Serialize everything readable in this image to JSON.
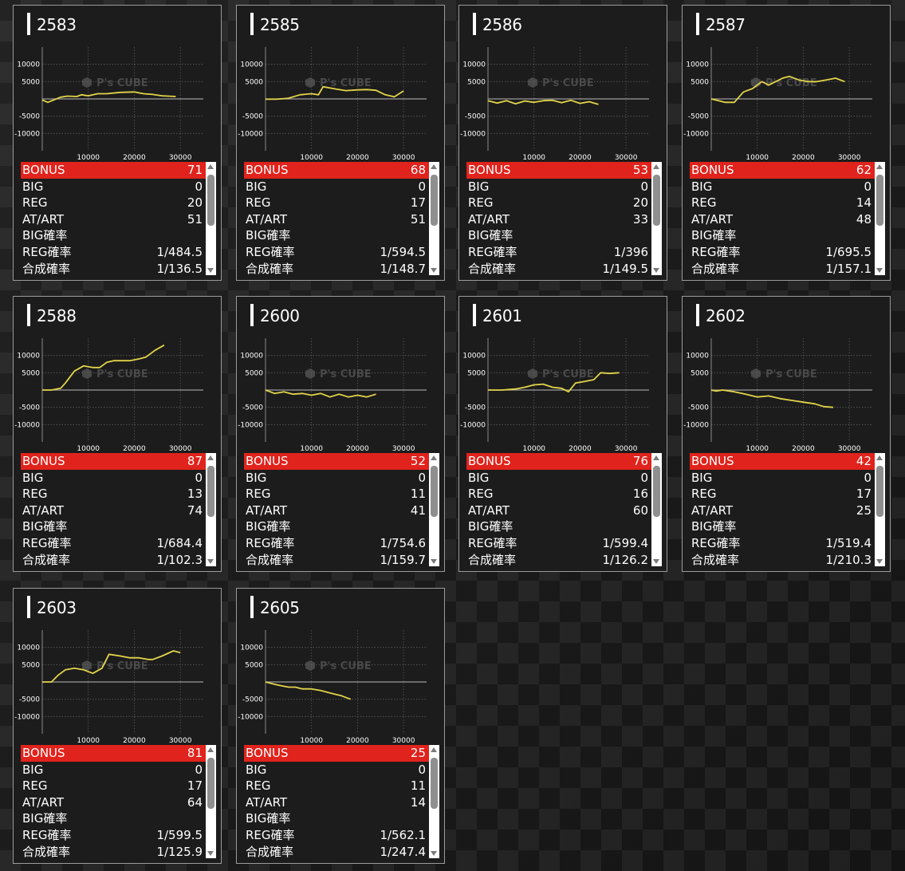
{
  "logo": {
    "text": "P's CUBE"
  },
  "labels": {
    "bonus": "BONUS",
    "big": "BIG",
    "reg": "REG",
    "at_art": "AT/ART",
    "big_rate": "BIG確率",
    "reg_rate": "REG確率",
    "total_rate": "合成確率"
  },
  "chart_axes": {
    "y_ticks": [
      "10000",
      "5000",
      "-5000",
      "-10000"
    ],
    "x_ticks": [
      "10000",
      "20000",
      "30000"
    ]
  },
  "colors": {
    "line": "#e2d44b",
    "bonus_bar": "#e0231c",
    "card_bg": "#1c1c1c"
  },
  "machines": [
    {
      "id": "2583",
      "bonus": "71",
      "big": "0",
      "reg": "20",
      "at_art": "51",
      "big_rate": "",
      "reg_rate": "1/484.5",
      "total_rate": "1/136.5"
    },
    {
      "id": "2585",
      "bonus": "68",
      "big": "0",
      "reg": "17",
      "at_art": "51",
      "big_rate": "",
      "reg_rate": "1/594.5",
      "total_rate": "1/148.7"
    },
    {
      "id": "2586",
      "bonus": "53",
      "big": "0",
      "reg": "20",
      "at_art": "33",
      "big_rate": "",
      "reg_rate": "1/396",
      "total_rate": "1/149.5"
    },
    {
      "id": "2587",
      "bonus": "62",
      "big": "0",
      "reg": "14",
      "at_art": "48",
      "big_rate": "",
      "reg_rate": "1/695.5",
      "total_rate": "1/157.1"
    },
    {
      "id": "2588",
      "bonus": "87",
      "big": "0",
      "reg": "13",
      "at_art": "74",
      "big_rate": "",
      "reg_rate": "1/684.4",
      "total_rate": "1/102.3"
    },
    {
      "id": "2600",
      "bonus": "52",
      "big": "0",
      "reg": "11",
      "at_art": "41",
      "big_rate": "",
      "reg_rate": "1/754.6",
      "total_rate": "1/159.7"
    },
    {
      "id": "2601",
      "bonus": "76",
      "big": "0",
      "reg": "16",
      "at_art": "60",
      "big_rate": "",
      "reg_rate": "1/599.4",
      "total_rate": "1/126.2"
    },
    {
      "id": "2602",
      "bonus": "42",
      "big": "0",
      "reg": "17",
      "at_art": "25",
      "big_rate": "",
      "reg_rate": "1/519.4",
      "total_rate": "1/210.3"
    },
    {
      "id": "2603",
      "bonus": "81",
      "big": "0",
      "reg": "17",
      "at_art": "64",
      "big_rate": "",
      "reg_rate": "1/599.5",
      "total_rate": "1/125.9"
    },
    {
      "id": "2605",
      "bonus": "25",
      "big": "0",
      "reg": "11",
      "at_art": "14",
      "big_rate": "",
      "reg_rate": "1/562.1",
      "total_rate": "1/247.4"
    }
  ],
  "chart_data": [
    {
      "type": "line",
      "xlim": [
        0,
        35000
      ],
      "ylim": [
        -15000,
        15000
      ],
      "grid": true,
      "series": [
        {
          "x": [
            0,
            1200,
            2500,
            4000,
            5500,
            7500,
            8500,
            10000,
            12000,
            14000,
            17000,
            20000,
            22000,
            24000,
            26000,
            29000
          ],
          "values": [
            -300,
            -1000,
            -300,
            500,
            800,
            700,
            1200,
            900,
            1500,
            1500,
            1900,
            2000,
            1500,
            1300,
            900,
            700
          ]
        }
      ]
    },
    {
      "type": "line",
      "xlim": [
        0,
        35000
      ],
      "ylim": [
        -15000,
        15000
      ],
      "grid": true,
      "series": [
        {
          "x": [
            0,
            2500,
            5000,
            7500,
            10000,
            11500,
            12500,
            13500,
            15500,
            17500,
            20000,
            22000,
            24000,
            26000,
            28000,
            30000
          ],
          "values": [
            -100,
            -100,
            200,
            1200,
            1500,
            1200,
            3500,
            3300,
            2800,
            2400,
            2600,
            2700,
            2500,
            1200,
            600,
            2300
          ]
        }
      ]
    },
    {
      "type": "line",
      "xlim": [
        0,
        35000
      ],
      "ylim": [
        -15000,
        15000
      ],
      "grid": true,
      "series": [
        {
          "x": [
            0,
            2000,
            4000,
            6000,
            8000,
            10000,
            12000,
            14000,
            16000,
            18000,
            20000,
            22000,
            24000
          ],
          "values": [
            -500,
            -1200,
            -500,
            -1400,
            -600,
            -1000,
            -500,
            -400,
            -1100,
            -400,
            -1300,
            -800,
            -1600
          ]
        }
      ]
    },
    {
      "type": "line",
      "xlim": [
        0,
        35000
      ],
      "ylim": [
        -15000,
        15000
      ],
      "grid": true,
      "series": [
        {
          "x": [
            0,
            3000,
            5000,
            7000,
            9000,
            11000,
            12500,
            14000,
            15500,
            17000,
            19000,
            21000,
            23000,
            25000,
            27000,
            29000
          ],
          "values": [
            0,
            -1000,
            -1000,
            2000,
            3000,
            5000,
            4000,
            5000,
            6000,
            6500,
            5500,
            5000,
            5000,
            5500,
            6000,
            5000
          ]
        }
      ]
    },
    {
      "type": "line",
      "xlim": [
        0,
        35000
      ],
      "ylim": [
        -15000,
        15000
      ],
      "grid": true,
      "series": [
        {
          "x": [
            0,
            2000,
            4000,
            5000,
            7000,
            9000,
            11000,
            12500,
            14000,
            15500,
            17000,
            19000,
            21000,
            22500,
            24500,
            26500
          ],
          "values": [
            0,
            0,
            500,
            2000,
            5500,
            7000,
            6500,
            6500,
            8000,
            8500,
            8500,
            8500,
            9000,
            9500,
            11500,
            13000
          ]
        }
      ]
    },
    {
      "type": "line",
      "xlim": [
        0,
        35000
      ],
      "ylim": [
        -15000,
        15000
      ],
      "grid": true,
      "series": [
        {
          "x": [
            0,
            2000,
            4000,
            6000,
            8000,
            10000,
            12000,
            14000,
            16000,
            18000,
            20000,
            22000,
            24000
          ],
          "values": [
            0,
            -1000,
            -500,
            -1200,
            -1000,
            -1500,
            -1000,
            -2000,
            -1200,
            -2000,
            -1500,
            -2000,
            -1200
          ]
        }
      ]
    },
    {
      "type": "line",
      "xlim": [
        0,
        35000
      ],
      "ylim": [
        -15000,
        15000
      ],
      "grid": true,
      "series": [
        {
          "x": [
            0,
            3000,
            6000,
            8000,
            10000,
            12000,
            14000,
            16000,
            17500,
            19000,
            21000,
            23000,
            24500,
            26500,
            28500
          ],
          "values": [
            0,
            0,
            300,
            800,
            1500,
            1700,
            800,
            500,
            -500,
            2000,
            2500,
            3000,
            5000,
            4800,
            5000
          ]
        }
      ]
    },
    {
      "type": "line",
      "xlim": [
        0,
        35000
      ],
      "ylim": [
        -15000,
        15000
      ],
      "grid": true,
      "series": [
        {
          "x": [
            0,
            1000,
            2500,
            5000,
            7500,
            10000,
            12500,
            15000,
            17500,
            20000,
            22500,
            24500,
            26500
          ],
          "values": [
            0,
            -300,
            0,
            -500,
            -1200,
            -2000,
            -1700,
            -2500,
            -3000,
            -3500,
            -4000,
            -4800,
            -5000
          ]
        }
      ]
    },
    {
      "type": "line",
      "xlim": [
        0,
        35000
      ],
      "ylim": [
        -15000,
        15000
      ],
      "grid": true,
      "series": [
        {
          "x": [
            0,
            2000,
            3500,
            5000,
            7000,
            9000,
            11000,
            13000,
            14500,
            17000,
            19000,
            21000,
            23000,
            24000,
            26000,
            28500,
            30000
          ],
          "values": [
            0,
            0,
            2000,
            3500,
            4000,
            3500,
            2500,
            4000,
            8000,
            7500,
            7000,
            7000,
            6500,
            6500,
            7500,
            9000,
            8500
          ]
        }
      ]
    },
    {
      "type": "line",
      "xlim": [
        0,
        35000
      ],
      "ylim": [
        -15000,
        15000
      ],
      "grid": true,
      "series": [
        {
          "x": [
            0,
            1500,
            3000,
            5000,
            6500,
            8000,
            10000,
            12000,
            13500,
            15000,
            16500,
            18500
          ],
          "values": [
            0,
            -500,
            -1000,
            -1500,
            -1500,
            -2000,
            -2000,
            -2500,
            -3000,
            -3500,
            -4000,
            -5000
          ]
        }
      ]
    }
  ]
}
